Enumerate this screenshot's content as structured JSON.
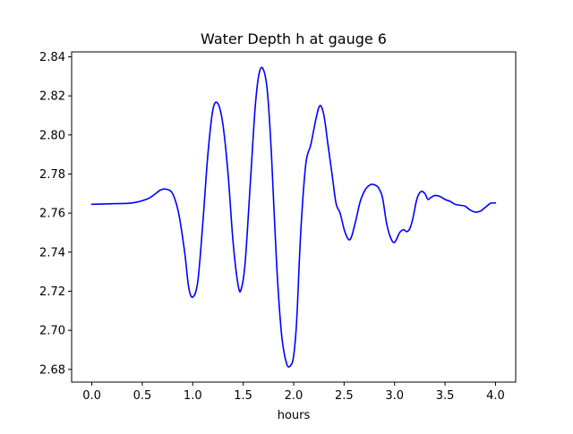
{
  "chart_data": {
    "type": "line",
    "title": "Water Depth h at gauge 6",
    "xlabel": "hours",
    "ylabel": "",
    "xlim": [
      -0.2,
      4.2
    ],
    "ylim": [
      2.6735,
      2.8425
    ],
    "xticks": [
      0.0,
      0.5,
      1.0,
      1.5,
      2.0,
      2.5,
      3.0,
      3.5,
      4.0
    ],
    "xtick_labels": [
      "0.0",
      "0.5",
      "1.0",
      "1.5",
      "2.0",
      "2.5",
      "3.0",
      "3.5",
      "4.0"
    ],
    "yticks": [
      2.68,
      2.7,
      2.72,
      2.74,
      2.76,
      2.78,
      2.8,
      2.82,
      2.84
    ],
    "ytick_labels": [
      "2.68",
      "2.70",
      "2.72",
      "2.74",
      "2.76",
      "2.78",
      "2.80",
      "2.82",
      "2.84"
    ],
    "grid": false,
    "series": [
      {
        "color": "#0000ff",
        "x": [
          0.0,
          0.2,
          0.4,
          0.55,
          0.62,
          0.68,
          0.74,
          0.8,
          0.86,
          0.92,
          0.96,
          1.0,
          1.05,
          1.1,
          1.15,
          1.2,
          1.25,
          1.3,
          1.35,
          1.4,
          1.45,
          1.48,
          1.52,
          1.57,
          1.62,
          1.66,
          1.7,
          1.74,
          1.78,
          1.83,
          1.88,
          1.93,
          1.97,
          2.0,
          2.03,
          2.07,
          2.12,
          2.17,
          2.22,
          2.26,
          2.3,
          2.34,
          2.38,
          2.42,
          2.46,
          2.51,
          2.56,
          2.61,
          2.66,
          2.71,
          2.76,
          2.8,
          2.84,
          2.88,
          2.92,
          2.96,
          3.0,
          3.05,
          3.09,
          3.12,
          3.15,
          3.18,
          3.22,
          3.26,
          3.3,
          3.33,
          3.36,
          3.4,
          3.45,
          3.5,
          3.55,
          3.6,
          3.65,
          3.7,
          3.75,
          3.8,
          3.85,
          3.9,
          3.95,
          4.0
        ],
        "values": [
          2.7645,
          2.7648,
          2.7652,
          2.7672,
          2.7695,
          2.7718,
          2.7722,
          2.77,
          2.76,
          2.74,
          2.722,
          2.717,
          2.725,
          2.755,
          2.79,
          2.813,
          2.816,
          2.805,
          2.78,
          2.745,
          2.723,
          2.721,
          2.735,
          2.775,
          2.815,
          2.832,
          2.8335,
          2.822,
          2.79,
          2.735,
          2.698,
          2.683,
          2.682,
          2.687,
          2.705,
          2.75,
          2.785,
          2.795,
          2.808,
          2.815,
          2.81,
          2.795,
          2.78,
          2.765,
          2.76,
          2.75,
          2.7465,
          2.755,
          2.766,
          2.772,
          2.7745,
          2.7745,
          2.773,
          2.768,
          2.755,
          2.7475,
          2.745,
          2.75,
          2.7515,
          2.7505,
          2.752,
          2.757,
          2.767,
          2.771,
          2.77,
          2.767,
          2.768,
          2.769,
          2.7685,
          2.767,
          2.766,
          2.7645,
          2.764,
          2.7635,
          2.7615,
          2.7605,
          2.761,
          2.763,
          2.765,
          2.7652
        ]
      }
    ]
  }
}
